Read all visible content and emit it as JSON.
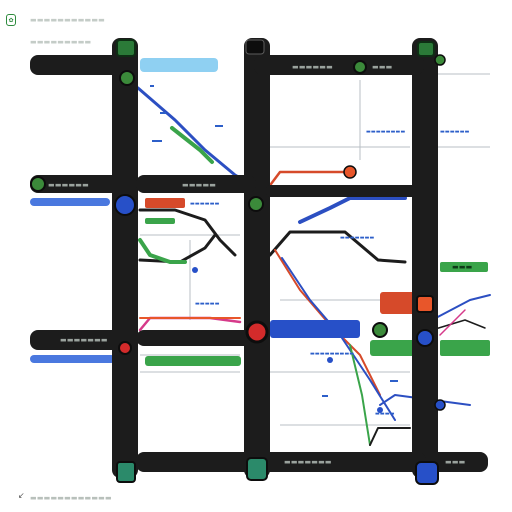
{
  "map": {
    "header": {
      "logo_icon": "leaf-icon",
      "line1": "▬▬▬▬▬▬▬▬▬▬▬",
      "line2": "▬▬▬▬▬▬▬▬▬"
    },
    "footer": {
      "arrow_icon": "arrow-left-icon",
      "text": "▬▬▬▬▬▬▬▬▬▬▬▬"
    },
    "labels": {
      "top_mid": "▬▬▬▬▬▬",
      "mid_left": "▬▬▬▬▬▬",
      "mid_center": "▬▬▬▬▬",
      "row3_left": "▬▬▬▬▬▬▬",
      "bottom_mid": "▬▬▬▬▬▬▬",
      "bottom_right": "▬▬▬",
      "right_green": "▬▬▬",
      "right_top_small": "▬▬▬",
      "note_a": "▬▬▬▬▬▬▬▬",
      "note_b": "▬▬▬▬▬▬",
      "note_c": "▬▬▬▬▬▬",
      "note_d": "▬▬▬▬▬",
      "note_e": "▬▬▬▬",
      "note_f": "▬▬▬▬▬▬▬▬▬",
      "note_g": "▬▬▬▬▬▬▬"
    },
    "colors": {
      "track_dark": "#1c1c1c",
      "line_blue": "#2c4fc2",
      "line_green": "#3aa44a",
      "line_red": "#d64a2a",
      "line_magenta": "#d63a8a",
      "line_cyan": "#7cc0e8",
      "station_green": "#3b8a3a",
      "station_blue": "#2750c8",
      "station_red": "#d32b2b",
      "accent_orange": "#e8562a"
    }
  }
}
